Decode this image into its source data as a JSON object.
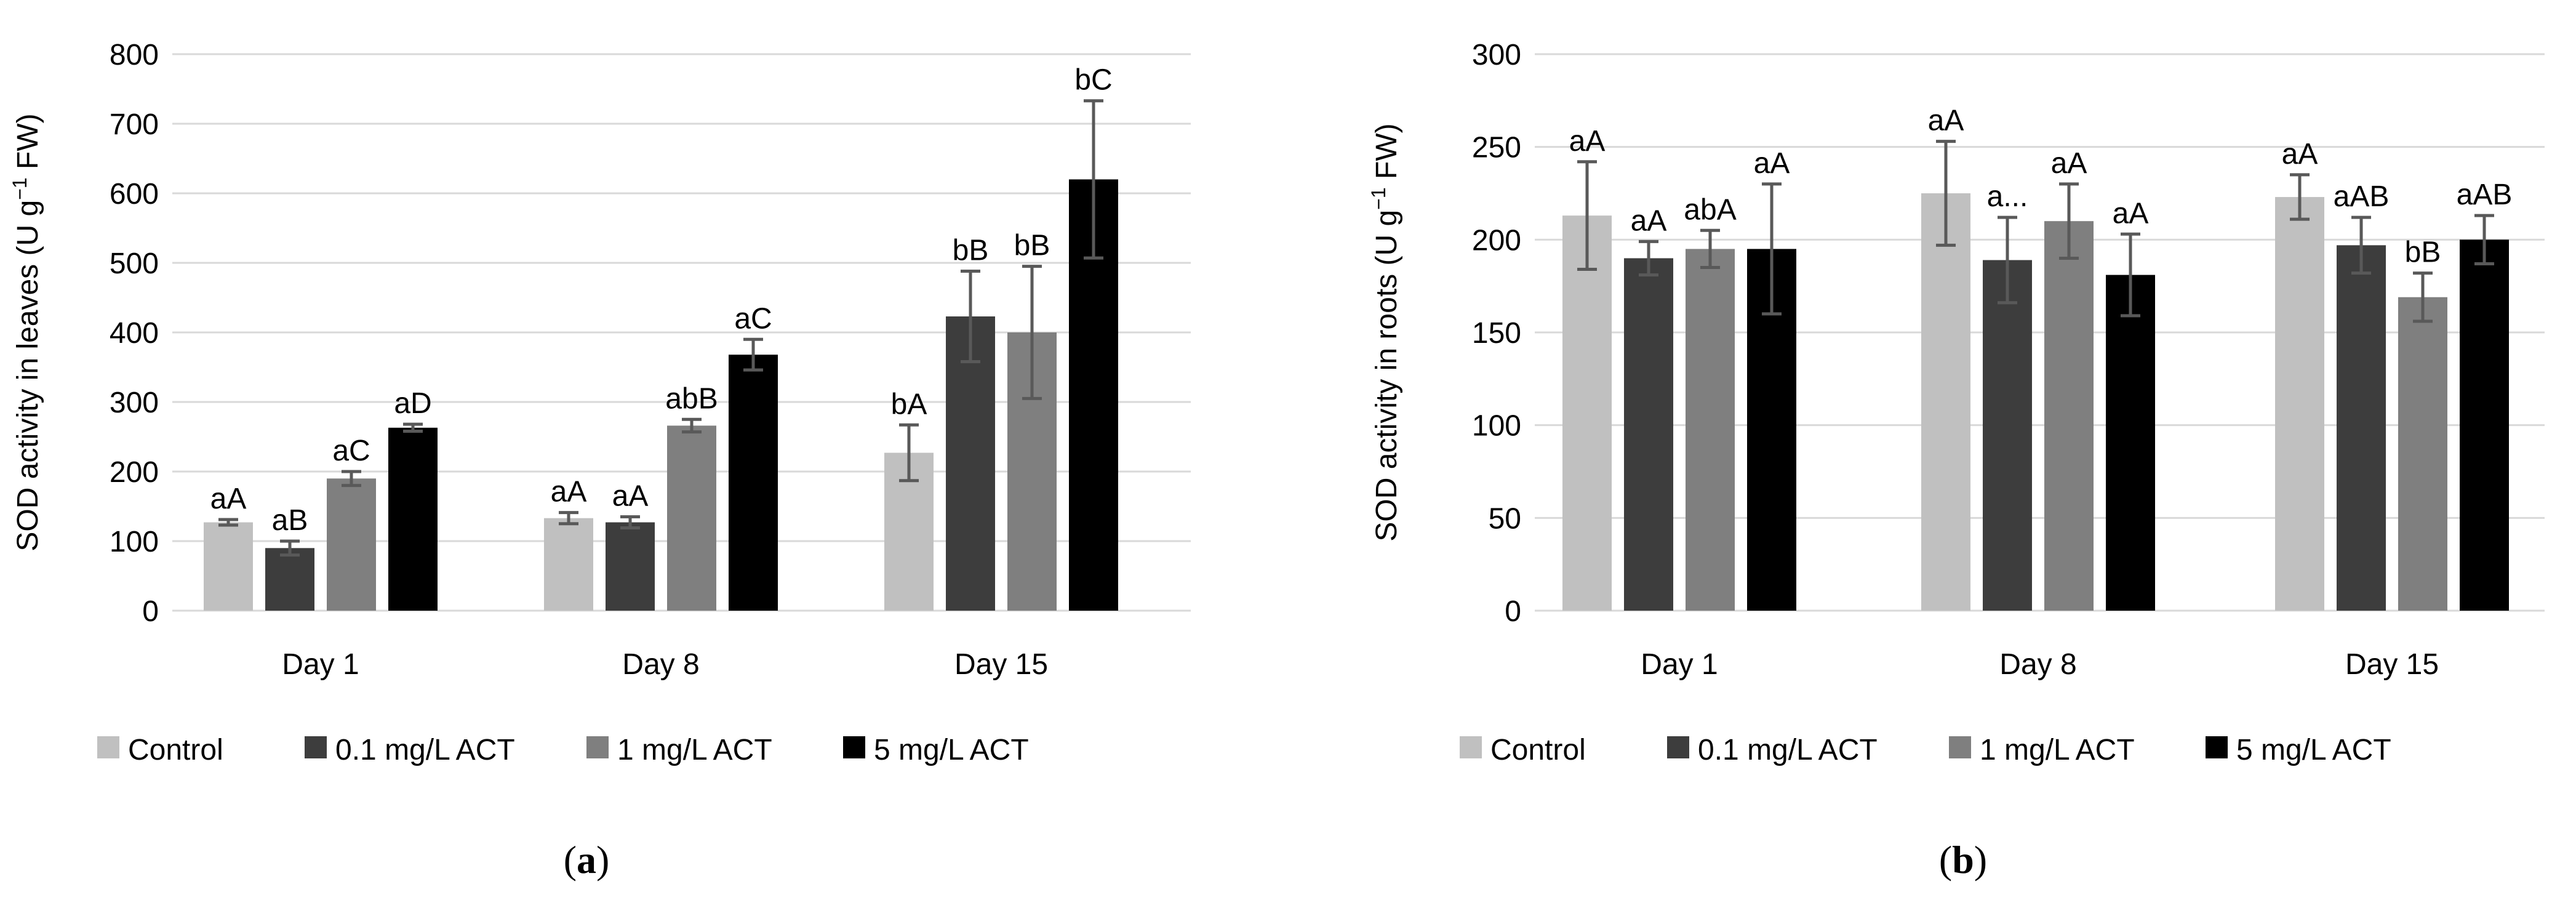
{
  "legend": [
    {
      "label": "Control",
      "color": "#c0c0c0"
    },
    {
      "label": "0.1 mg/L ACT",
      "color": "#3d3d3d"
    },
    {
      "label": "1 mg/L ACT",
      "color": "#7f7f7f"
    },
    {
      "label": "5 mg/L ACT",
      "color": "#000000"
    }
  ],
  "chart_data": [
    {
      "type": "bar",
      "panel_label": "a",
      "ylabel_main": "SOD activity in leaves  (U g",
      "ylabel_sup": "−1",
      "ylabel_tail": " FW)",
      "xlabel": "",
      "ylim": [
        0,
        800
      ],
      "yticks": [
        0,
        100,
        200,
        300,
        400,
        500,
        600,
        700,
        800
      ],
      "grid": true,
      "legend_position": "bottom",
      "categories": [
        "Day 1",
        "Day 8",
        "Day 15"
      ],
      "series": [
        {
          "name": "Control",
          "values": [
            127,
            133,
            227
          ],
          "errors": [
            4,
            8,
            40
          ],
          "labels": [
            "aA",
            "aA",
            "bA"
          ]
        },
        {
          "name": "0.1 mg/L ACT",
          "values": [
            90,
            127,
            423
          ],
          "errors": [
            10,
            8,
            65
          ],
          "labels": [
            "aB",
            "aA",
            "bB"
          ]
        },
        {
          "name": "1 mg/L ACT",
          "values": [
            190,
            266,
            400
          ],
          "errors": [
            10,
            9,
            95
          ],
          "labels": [
            "aC",
            "abB",
            "bB"
          ]
        },
        {
          "name": "5 mg/L ACT",
          "values": [
            263,
            368,
            620
          ],
          "errors": [
            5,
            22,
            113
          ],
          "labels": [
            "aD",
            "aC",
            "bC"
          ]
        }
      ]
    },
    {
      "type": "bar",
      "panel_label": "b",
      "ylabel_main": "SOD activity in roots (U g",
      "ylabel_sup": "−1",
      "ylabel_tail": " FW)",
      "xlabel": "",
      "ylim": [
        0,
        300
      ],
      "yticks": [
        0,
        50,
        100,
        150,
        200,
        250,
        300
      ],
      "grid": true,
      "legend_position": "bottom",
      "categories": [
        "Day 1",
        "Day 8",
        "Day 15"
      ],
      "series": [
        {
          "name": "Control",
          "values": [
            213,
            225,
            223
          ],
          "errors": [
            29,
            28,
            12
          ],
          "labels": [
            "aA",
            "aA",
            "aA"
          ]
        },
        {
          "name": "0.1 mg/L ACT",
          "values": [
            190,
            189,
            197
          ],
          "errors": [
            9,
            23,
            15
          ],
          "labels": [
            "aA",
            "a...",
            "aAB"
          ]
        },
        {
          "name": "1 mg/L ACT",
          "values": [
            195,
            210,
            169
          ],
          "errors": [
            10,
            20,
            13
          ],
          "labels": [
            "abA",
            "aA",
            "bB"
          ]
        },
        {
          "name": "5 mg/L ACT",
          "values": [
            195,
            181,
            200
          ],
          "errors": [
            35,
            22,
            13
          ],
          "labels": [
            "aA",
            "aA",
            "aAB"
          ]
        }
      ]
    }
  ]
}
